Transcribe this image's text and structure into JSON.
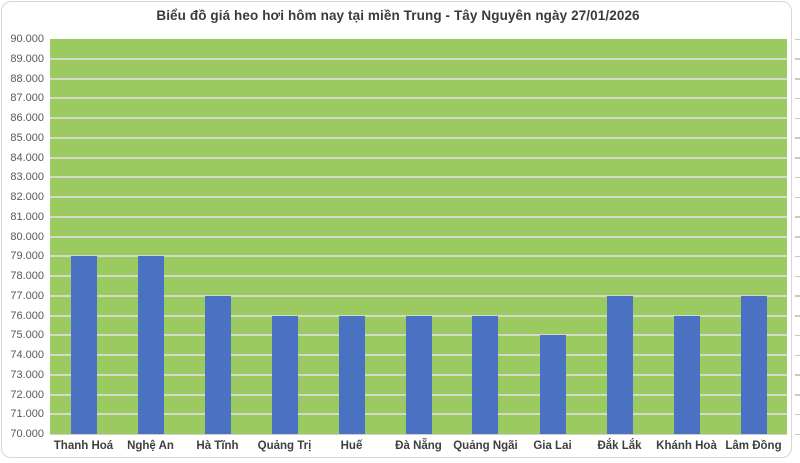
{
  "chart_data": {
    "type": "bar",
    "title": "Biểu đồ giá heo hơi hôm nay tại miền Trung - Tây Nguyên ngày 27/01/2026",
    "categories": [
      "Thanh Hoá",
      "Nghệ An",
      "Hà Tĩnh",
      "Quảng Trị",
      "Huế",
      "Đà Nẵng",
      "Quảng Ngãi",
      "Gia Lai",
      "Đắk Lắk",
      "Khánh Hoà",
      "Lâm Đồng"
    ],
    "values": [
      79000,
      79000,
      77000,
      76000,
      76000,
      76000,
      76000,
      75000,
      77000,
      76000,
      77000
    ],
    "y_tick_labels": [
      "90.000",
      "89.000",
      "88.000",
      "87.000",
      "86.000",
      "85.000",
      "84.000",
      "83.000",
      "82.000",
      "81.000",
      "80.000",
      "79.000",
      "78.000",
      "77.000",
      "76.000",
      "75.000",
      "74.000",
      "73.000",
      "72.000",
      "71.000",
      "70.000"
    ],
    "ylim": [
      70000,
      90000
    ],
    "y_step": 1000,
    "xlabel": "",
    "ylabel": "",
    "grid": true,
    "legend": false,
    "colors": {
      "bar": "#4B72C2",
      "plot_bg": "#9BCA61",
      "gridline": "#D3DAC9",
      "title_text": "#3B3B3B",
      "axis_text": "#595959",
      "category_text": "#404040",
      "frame_border": "#D6D6D6"
    }
  }
}
